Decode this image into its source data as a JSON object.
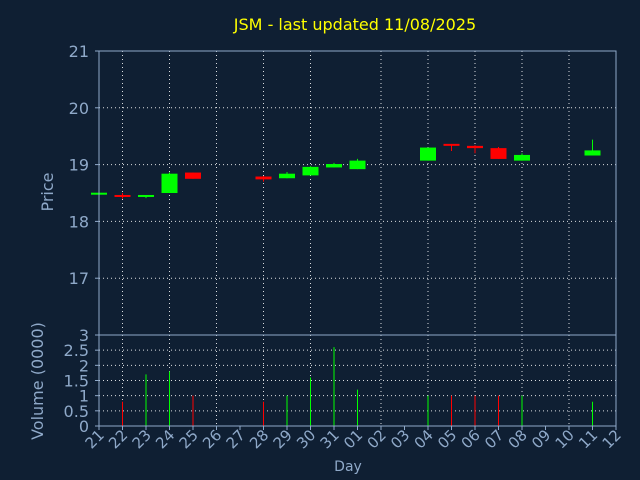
{
  "colors": {
    "background": "#0f1f33",
    "up": "#00ff00",
    "down": "#ff0000",
    "title": "#ffff00",
    "axis_text": "#8fa9c9",
    "grid": "#ffffff"
  },
  "chart_data": {
    "type": "candlestick",
    "title": "JSM - last updated 11/08/2025",
    "price_panel": {
      "ylabel": "Price",
      "ylim": [
        16.0,
        21.0
      ],
      "yticks": [
        "17",
        "18",
        "19",
        "20",
        "21"
      ]
    },
    "volume_panel": {
      "ylabel": "Volume (0000)",
      "ylim": [
        0,
        3
      ],
      "yticks": [
        "0",
        "0.5",
        "1",
        "1.5",
        "2",
        "2.5",
        "3"
      ]
    },
    "xlabel": "Day",
    "x_ticks": [
      "21",
      "22",
      "23",
      "24",
      "25",
      "26",
      "27",
      "28",
      "29",
      "30",
      "31",
      "01",
      "02",
      "03",
      "04",
      "05",
      "06",
      "07",
      "08",
      "09",
      "10",
      "11",
      "12"
    ],
    "grid_x": [
      "22",
      "24",
      "26",
      "28",
      "30",
      "02",
      "04",
      "06",
      "08",
      "10",
      "12"
    ],
    "candles": [
      {
        "day": "21",
        "open": 18.47,
        "high": 18.5,
        "low": 18.45,
        "close": 18.47,
        "volume": 0.0
      },
      {
        "day": "22",
        "open": 18.45,
        "high": 18.5,
        "low": 18.4,
        "close": 18.43,
        "volume": 0.8
      },
      {
        "day": "23",
        "open": 18.43,
        "high": 18.46,
        "low": 18.41,
        "close": 18.45,
        "volume": 1.7
      },
      {
        "day": "24",
        "open": 18.5,
        "high": 18.86,
        "low": 18.5,
        "close": 18.84,
        "volume": 1.8
      },
      {
        "day": "25",
        "open": 18.86,
        "high": 18.86,
        "low": 18.75,
        "close": 18.75,
        "volume": 1.0
      },
      {
        "day": "28",
        "open": 18.79,
        "high": 18.8,
        "low": 18.7,
        "close": 18.74,
        "volume": 0.8
      },
      {
        "day": "29",
        "open": 18.76,
        "high": 18.87,
        "low": 18.76,
        "close": 18.84,
        "volume": 1.0
      },
      {
        "day": "30",
        "open": 18.81,
        "high": 18.97,
        "low": 18.81,
        "close": 18.96,
        "volume": 1.6
      },
      {
        "day": "31",
        "open": 18.95,
        "high": 19.03,
        "low": 18.95,
        "close": 19.01,
        "volume": 2.6
      },
      {
        "day": "01",
        "open": 18.92,
        "high": 19.1,
        "low": 18.92,
        "close": 19.07,
        "volume": 1.2
      },
      {
        "day": "04",
        "open": 19.07,
        "high": 19.3,
        "low": 19.07,
        "close": 19.3,
        "volume": 1.0
      },
      {
        "day": "05",
        "open": 19.34,
        "high": 19.36,
        "low": 19.24,
        "close": 19.33,
        "volume": 1.0
      },
      {
        "day": "06",
        "open": 19.33,
        "high": 19.34,
        "low": 19.2,
        "close": 19.29,
        "volume": 1.0
      },
      {
        "day": "07",
        "open": 19.29,
        "high": 19.31,
        "low": 19.1,
        "close": 19.1,
        "volume": 1.0
      },
      {
        "day": "08",
        "open": 19.07,
        "high": 19.2,
        "low": 19.07,
        "close": 19.17,
        "volume": 1.0
      },
      {
        "day": "11",
        "open": 19.16,
        "high": 19.44,
        "low": 19.16,
        "close": 19.25,
        "volume": 0.8
      }
    ]
  }
}
